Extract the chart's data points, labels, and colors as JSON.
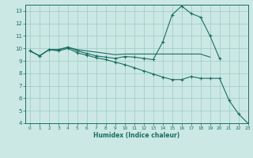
{
  "xlabel": "Humidex (Indice chaleur)",
  "bg_color": "#cce8e4",
  "line_color": "#1a6e62",
  "grid_color": "#99ccc4",
  "xlim": [
    -0.5,
    23
  ],
  "ylim": [
    4,
    13.5
  ],
  "xticks": [
    0,
    1,
    2,
    3,
    4,
    5,
    6,
    7,
    8,
    9,
    10,
    11,
    12,
    13,
    14,
    15,
    16,
    17,
    18,
    19,
    20,
    21,
    22,
    23
  ],
  "yticks": [
    4,
    5,
    6,
    7,
    8,
    9,
    10,
    11,
    12,
    13
  ],
  "series": [
    {
      "x": [
        0,
        1,
        2,
        3,
        4,
        5,
        6,
        7,
        8,
        9,
        10,
        11,
        12,
        13,
        14,
        15,
        16,
        17,
        18,
        19
      ],
      "y": [
        9.8,
        9.4,
        9.9,
        9.9,
        10.1,
        9.9,
        9.8,
        9.7,
        9.6,
        9.5,
        9.55,
        9.55,
        9.55,
        9.55,
        9.55,
        9.55,
        9.55,
        9.55,
        9.55,
        9.3
      ],
      "marker": false
    },
    {
      "x": [
        0,
        1,
        2,
        3,
        4,
        5,
        6,
        7,
        8,
        9,
        10,
        11,
        12,
        13,
        14,
        15,
        16,
        17,
        18,
        19,
        20
      ],
      "y": [
        9.8,
        9.4,
        9.9,
        9.9,
        10.1,
        9.8,
        9.6,
        9.4,
        9.3,
        9.2,
        9.35,
        9.3,
        9.2,
        9.1,
        10.5,
        12.7,
        13.4,
        12.8,
        12.5,
        11.0,
        9.2
      ],
      "marker": true
    },
    {
      "x": [
        0,
        1,
        2,
        3,
        4,
        5,
        6,
        7,
        8,
        9,
        10,
        11,
        12,
        13,
        14,
        15,
        16,
        17,
        18,
        19,
        20,
        21,
        22,
        23
      ],
      "y": [
        9.8,
        9.4,
        9.9,
        9.8,
        10.0,
        9.65,
        9.45,
        9.25,
        9.1,
        8.9,
        8.7,
        8.45,
        8.2,
        7.95,
        7.7,
        7.5,
        7.5,
        7.75,
        7.6,
        7.6,
        7.6,
        5.85,
        4.75,
        4.0
      ],
      "marker": true
    }
  ]
}
